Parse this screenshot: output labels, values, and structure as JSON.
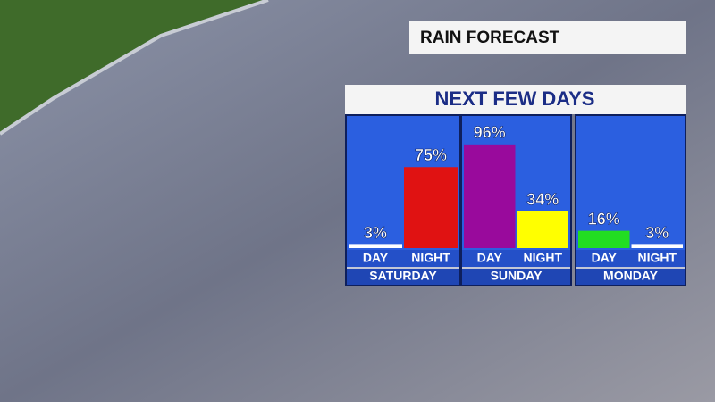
{
  "chart_data": {
    "type": "bar",
    "title": "RAIN FORECAST",
    "subtitle": "NEXT FEW DAYS",
    "ylim": [
      0,
      100
    ],
    "panels": [
      {
        "name": "SATURDAY",
        "categories": [
          "DAY",
          "NIGHT"
        ],
        "values": [
          3,
          75
        ],
        "value_labels": [
          "3%",
          "75%"
        ],
        "colors": [
          "#ffffff",
          "#e01212"
        ]
      },
      {
        "name": "SUNDAY",
        "categories": [
          "DAY",
          "NIGHT"
        ],
        "values": [
          96,
          34
        ],
        "value_labels": [
          "96%",
          "34%"
        ],
        "colors": [
          "#990a9c",
          "#ffff00"
        ]
      },
      {
        "name": "MONDAY",
        "categories": [
          "DAY",
          "NIGHT"
        ],
        "values": [
          16,
          3
        ],
        "value_labels": [
          "16%",
          "3%"
        ],
        "colors": [
          "#22dd22",
          "#ffffff"
        ]
      }
    ]
  }
}
